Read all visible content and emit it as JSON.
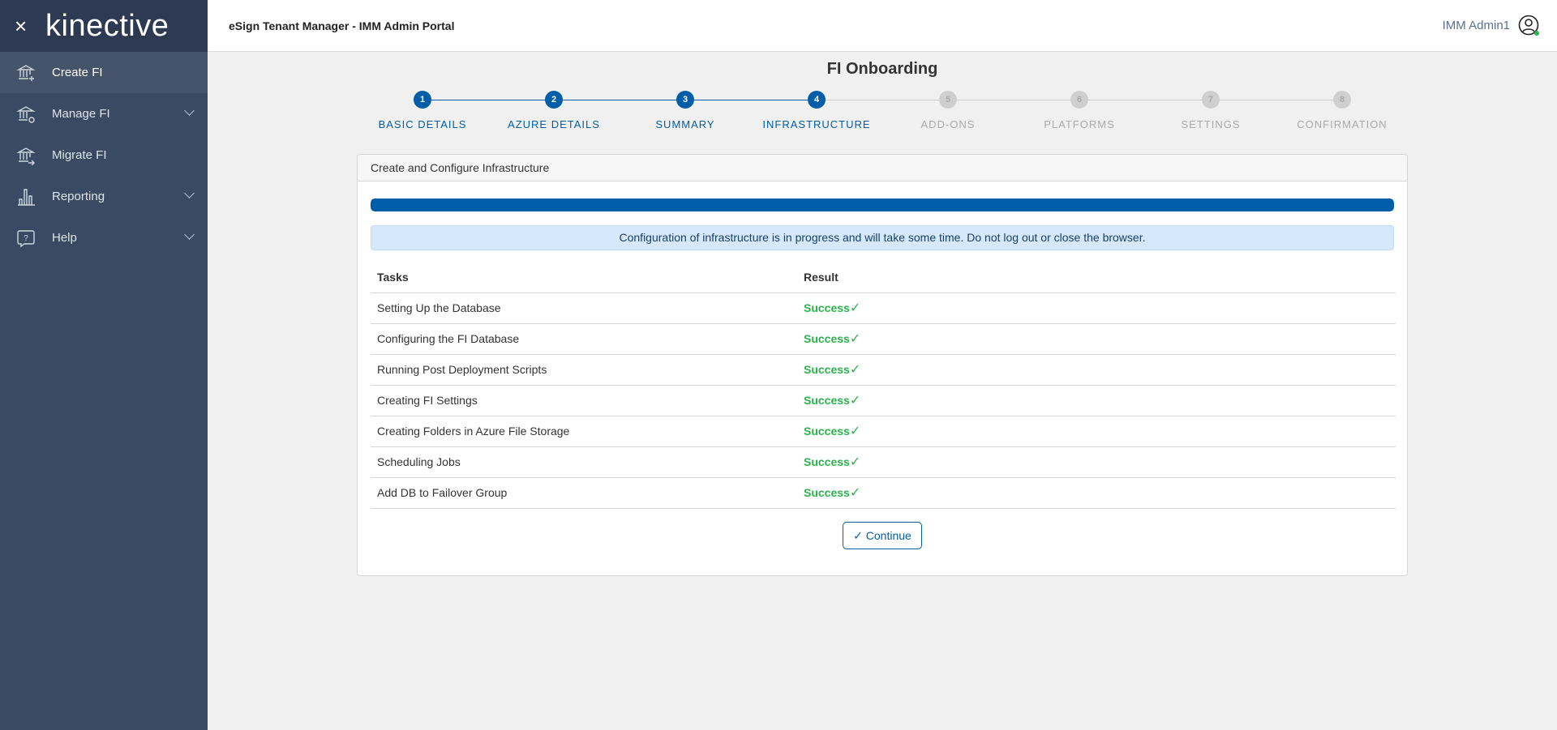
{
  "sidebar": {
    "close_icon": "close-icon",
    "logo": "kinective",
    "items": [
      {
        "label": "Create FI",
        "icon": "bank-plus-icon",
        "active": true
      },
      {
        "label": "Manage FI",
        "icon": "bank-gear-icon",
        "chevron": true
      },
      {
        "label": "Migrate FI",
        "icon": "bank-arrow-icon"
      },
      {
        "label": "Reporting",
        "icon": "bar-chart-icon",
        "chevron": true
      },
      {
        "label": "Help",
        "icon": "help-bubble-icon",
        "chevron": true
      }
    ]
  },
  "header": {
    "title": "eSign Tenant Manager - IMM Admin Portal",
    "user": "IMM Admin1"
  },
  "page": {
    "title": "FI Onboarding"
  },
  "steps": [
    {
      "num": "1",
      "label": "BASIC DETAILS",
      "state": "done"
    },
    {
      "num": "2",
      "label": "AZURE DETAILS",
      "state": "done"
    },
    {
      "num": "3",
      "label": "SUMMARY",
      "state": "done"
    },
    {
      "num": "4",
      "label": "INFRASTRUCTURE",
      "state": "current"
    },
    {
      "num": "5",
      "label": "ADD-ONS",
      "state": "todo"
    },
    {
      "num": "6",
      "label": "PLATFORMS",
      "state": "todo"
    },
    {
      "num": "7",
      "label": "SETTINGS",
      "state": "todo"
    },
    {
      "num": "8",
      "label": "CONFIRMATION",
      "state": "todo"
    }
  ],
  "card": {
    "title": "Create and Configure Infrastructure",
    "progress_percent": 100,
    "alert": "Configuration of infrastructure is in progress and will take some time. Do not log out or close the browser.",
    "columns": [
      "Tasks",
      "Result"
    ],
    "rows": [
      {
        "task": "Setting Up the Database",
        "result": "Success"
      },
      {
        "task": "Configuring the FI Database",
        "result": "Success"
      },
      {
        "task": "Running Post Deployment Scripts",
        "result": "Success"
      },
      {
        "task": "Creating FI Settings",
        "result": "Success"
      },
      {
        "task": "Creating Folders in Azure File Storage",
        "result": "Success"
      },
      {
        "task": "Scheduling Jobs",
        "result": "Success"
      },
      {
        "task": "Add DB to Failover Group",
        "result": "Success"
      }
    ],
    "continue_label": "Continue"
  },
  "colors": {
    "primary": "#005ea8",
    "success": "#2bb34b",
    "sidebar": "#3b4a63"
  }
}
